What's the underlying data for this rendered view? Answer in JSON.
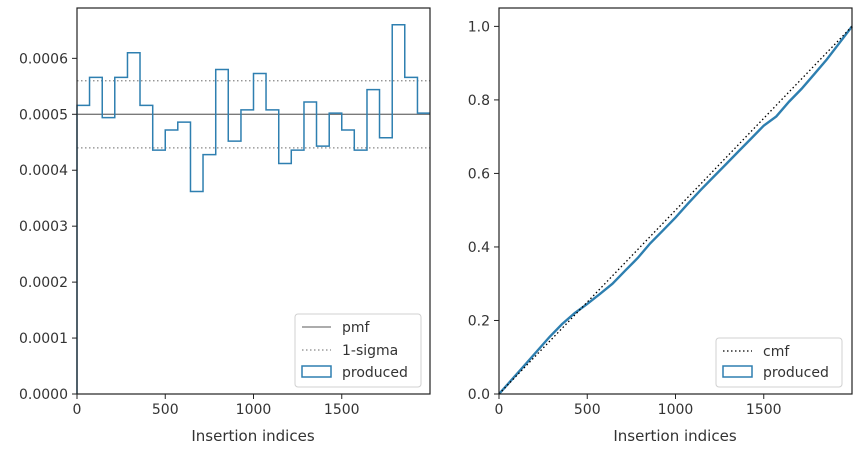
{
  "chart_data": [
    {
      "type": "step",
      "xlabel": "Insertion indices",
      "ylabel": "",
      "xlim": [
        0,
        2000
      ],
      "ylim": [
        0,
        0.00069
      ],
      "xticks": [
        0,
        500,
        1000,
        1500
      ],
      "xtick_labels": [
        "0",
        "500",
        "1000",
        "1500"
      ],
      "yticks": [
        0,
        0.0001,
        0.0002,
        0.0003,
        0.0004,
        0.0005,
        0.0006
      ],
      "ytick_labels": [
        "0.0000",
        "0.0001",
        "0.0002",
        "0.0003",
        "0.0004",
        "0.0005",
        "0.0006"
      ],
      "reference_lines": {
        "pmf": 0.0005,
        "sigma_upper": 0.00056,
        "sigma_lower": 0.00044
      },
      "series": [
        {
          "name": "produced",
          "bin_edges": [
            0,
            71,
            143,
            214,
            286,
            357,
            429,
            500,
            571,
            643,
            714,
            786,
            857,
            929,
            1000,
            1071,
            1143,
            1214,
            1286,
            1357,
            1429,
            1500,
            1571,
            1643,
            1714,
            1786,
            1857,
            1929,
            2000
          ],
          "values": [
            0.000516,
            0.000566,
            0.000494,
            0.000566,
            0.00061,
            0.000516,
            0.000436,
            0.000472,
            0.000486,
            0.000362,
            0.000428,
            0.00058,
            0.000452,
            0.000508,
            0.000573,
            0.000508,
            0.000412,
            0.000436,
            0.000522,
            0.000443,
            0.000502,
            0.000472,
            0.000436,
            0.000544,
            0.000458,
            0.00066,
            0.000566,
            0.000502
          ]
        }
      ],
      "legend": {
        "placement": "lower-right",
        "entries": [
          "pmf",
          "1-sigma",
          "produced"
        ]
      },
      "grid": false
    },
    {
      "type": "line",
      "xlabel": "Insertion indices",
      "ylabel": "",
      "xlim": [
        0,
        2000
      ],
      "ylim": [
        0,
        1.05
      ],
      "xticks": [
        0,
        500,
        1000,
        1500
      ],
      "xtick_labels": [
        "0",
        "500",
        "1000",
        "1500"
      ],
      "yticks": [
        0,
        0.2,
        0.4,
        0.6,
        0.8,
        1.0
      ],
      "ytick_labels": [
        "0.0",
        "0.2",
        "0.4",
        "0.6",
        "0.8",
        "1.0"
      ],
      "series": [
        {
          "name": "cmf",
          "x": [
            0,
            2000
          ],
          "y": [
            0,
            1.0
          ]
        },
        {
          "name": "produced",
          "x": [
            0,
            143,
            286,
            357,
            429,
            500,
            571,
            643,
            714,
            786,
            857,
            929,
            1000,
            1071,
            1143,
            1214,
            1286,
            1357,
            1429,
            1500,
            1571,
            1643,
            1714,
            1786,
            1857,
            1929,
            2000
          ],
          "y": [
            0,
            0.077,
            0.155,
            0.19,
            0.22,
            0.245,
            0.272,
            0.3,
            0.335,
            0.37,
            0.41,
            0.445,
            0.48,
            0.518,
            0.555,
            0.59,
            0.625,
            0.66,
            0.695,
            0.73,
            0.755,
            0.795,
            0.83,
            0.87,
            0.91,
            0.955,
            1.0
          ]
        }
      ],
      "legend": {
        "placement": "lower-right",
        "entries": [
          "cmf",
          "produced"
        ]
      },
      "grid": false
    }
  ],
  "colors": {
    "produced": "#2e7fb0",
    "pmf": "#7a7a7a",
    "sigma": "#888888",
    "cmf": "#000000",
    "axes": "#222222"
  }
}
